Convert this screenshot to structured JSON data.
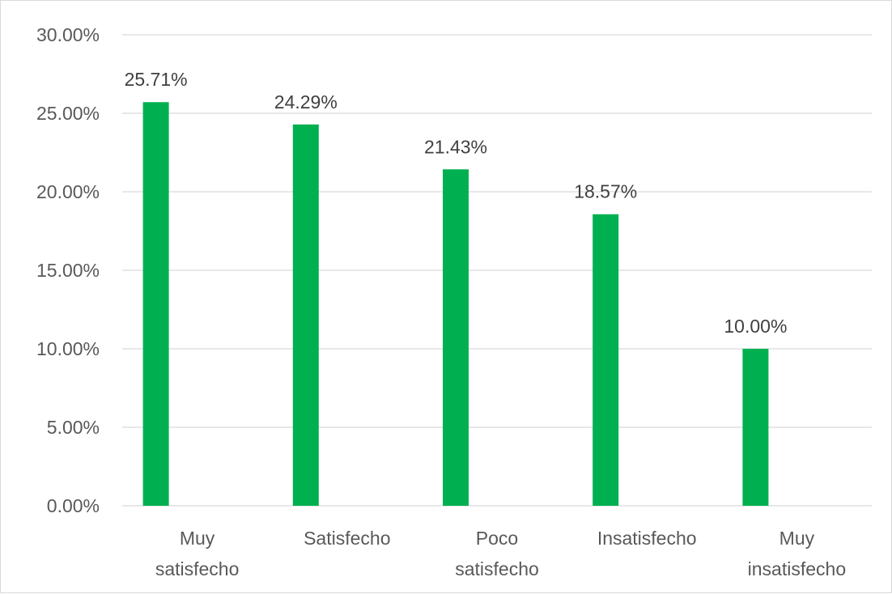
{
  "chart_data": {
    "type": "bar",
    "categories": [
      [
        "Muy",
        "satisfecho"
      ],
      [
        "Satisfecho"
      ],
      [
        "Poco",
        "satisfecho"
      ],
      [
        "Insatisfecho"
      ],
      [
        "Muy",
        "insatisfecho"
      ]
    ],
    "series": [
      {
        "values": [
          25.71,
          24.29,
          21.43,
          18.57,
          10.0
        ]
      }
    ],
    "data_labels": [
      "25.71%",
      "24.29%",
      "21.43%",
      "18.57%",
      "10.00%"
    ],
    "y_ticks": [
      "0.00%",
      "5.00%",
      "10.00%",
      "15.00%",
      "20.00%",
      "25.00%",
      "30.00%"
    ],
    "ylim": [
      0,
      30
    ],
    "grid": true,
    "legend": "none",
    "bar_color": "#00b050",
    "grid_color": "#d9d9d9"
  }
}
